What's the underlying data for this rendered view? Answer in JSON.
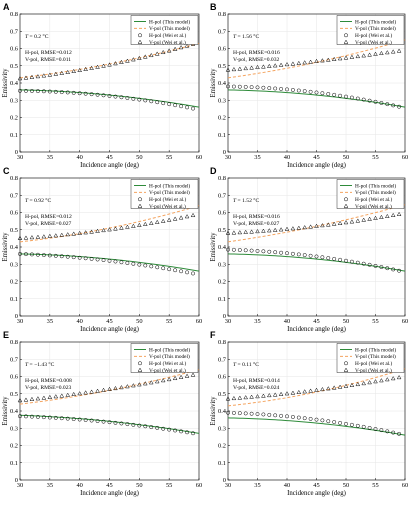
{
  "colors": {
    "h_line": "#2e8b3a",
    "v_line": "#f4a460",
    "marker": "#000000",
    "grid": "#e6e6e6"
  },
  "common": {
    "xlabel": "Incidence angle (deg)",
    "ylabel": "Emissivity",
    "xticks": [
      30,
      35,
      40,
      45,
      50,
      55,
      60
    ],
    "yticks": [
      "0",
      "0.1",
      "0.2",
      "0.3",
      "0.4",
      "0.5",
      "0.6",
      "0.7",
      "0.8"
    ],
    "legend": [
      {
        "label": "H-pol (This model)",
        "kind": "h_line"
      },
      {
        "label": "V-pol (This model)",
        "kind": "v_line"
      },
      {
        "label": "H-pol (Wei et al.)",
        "kind": "circle"
      },
      {
        "label": "V-pol (Wei et al.)",
        "kind": "triangle"
      }
    ]
  },
  "chart_data": [
    {
      "panel": "A",
      "type": "line",
      "temperature": "0.2 °C",
      "rmse_h": "H-pol, RMSE=0.012",
      "rmse_v": "V-pol, RMSE=0.011",
      "xlim": [
        30,
        60
      ],
      "ylim": [
        0,
        0.8
      ],
      "grid": true,
      "legend_position": "top-right",
      "x": [
        30,
        45,
        60
      ],
      "series": [
        {
          "name": "H-pol (This model)",
          "values": [
            0.36,
            0.33,
            0.26
          ]
        },
        {
          "name": "V-pol (This model)",
          "values": [
            0.43,
            0.51,
            0.63
          ]
        },
        {
          "name": "H-pol (Wei et al.)",
          "values": [
            0.355,
            0.325,
            0.245
          ]
        },
        {
          "name": "V-pol (Wei et al.)",
          "values": [
            0.425,
            0.505,
            0.635
          ]
        }
      ]
    },
    {
      "panel": "B",
      "type": "line",
      "temperature": "1.56 °C",
      "rmse_h": "H-pol, RMSE=0.016",
      "rmse_v": "V-pol, RMSE=0.032",
      "xlim": [
        30,
        60
      ],
      "ylim": [
        0,
        0.8
      ],
      "grid": true,
      "legend_position": "top-right",
      "x": [
        30,
        45,
        60
      ],
      "series": [
        {
          "name": "H-pol (This model)",
          "values": [
            0.36,
            0.33,
            0.26
          ]
        },
        {
          "name": "V-pol (This model)",
          "values": [
            0.43,
            0.52,
            0.65
          ]
        },
        {
          "name": "H-pol (Wei et al.)",
          "values": [
            0.38,
            0.345,
            0.255
          ]
        },
        {
          "name": "V-pol (Wei et al.)",
          "values": [
            0.475,
            0.525,
            0.59
          ]
        }
      ]
    },
    {
      "panel": "C",
      "type": "line",
      "temperature": "0.92 °C",
      "rmse_h": "H-pol, RMSE=0.012",
      "rmse_v": "V-pol, RMSE=0.027",
      "xlim": [
        30,
        60
      ],
      "ylim": [
        0,
        0.8
      ],
      "grid": true,
      "legend_position": "top-right",
      "x": [
        30,
        45,
        60
      ],
      "series": [
        {
          "name": "H-pol (This model)",
          "values": [
            0.36,
            0.33,
            0.26
          ]
        },
        {
          "name": "V-pol (This model)",
          "values": [
            0.43,
            0.51,
            0.64
          ]
        },
        {
          "name": "H-pol (Wei et al.)",
          "values": [
            0.36,
            0.32,
            0.24
          ]
        },
        {
          "name": "V-pol (Wei et al.)",
          "values": [
            0.45,
            0.5,
            0.59
          ]
        }
      ]
    },
    {
      "panel": "D",
      "type": "line",
      "temperature": "1.52 °C",
      "rmse_h": "H-pol, RMSE=0.016",
      "rmse_v": "V-pol, RMSE=0.027",
      "xlim": [
        30,
        60
      ],
      "ylim": [
        0,
        0.8
      ],
      "grid": true,
      "legend_position": "top-right",
      "x": [
        30,
        45,
        60
      ],
      "series": [
        {
          "name": "H-pol (This model)",
          "values": [
            0.36,
            0.33,
            0.26
          ]
        },
        {
          "name": "V-pol (This model)",
          "values": [
            0.43,
            0.52,
            0.645
          ]
        },
        {
          "name": "H-pol (Wei et al.)",
          "values": [
            0.385,
            0.345,
            0.255
          ]
        },
        {
          "name": "V-pol (Wei et al.)",
          "values": [
            0.48,
            0.52,
            0.595
          ]
        }
      ]
    },
    {
      "panel": "E",
      "type": "line",
      "temperature": "−1.43 °C",
      "rmse_h": "H-pol, RMSE=0.008",
      "rmse_v": "V-pol, RMSE=0.023",
      "xlim": [
        30,
        60
      ],
      "ylim": [
        0,
        0.8
      ],
      "grid": true,
      "legend_position": "top-right",
      "x": [
        30,
        45,
        60
      ],
      "series": [
        {
          "name": "H-pol (This model)",
          "values": [
            0.375,
            0.34,
            0.27
          ]
        },
        {
          "name": "V-pol (This model)",
          "values": [
            0.44,
            0.52,
            0.64
          ]
        },
        {
          "name": "H-pol (Wei et al.)",
          "values": [
            0.37,
            0.335,
            0.265
          ]
        },
        {
          "name": "V-pol (Wei et al.)",
          "values": [
            0.46,
            0.525,
            0.615
          ]
        }
      ]
    },
    {
      "panel": "F",
      "type": "line",
      "temperature": "0.11 °C",
      "rmse_h": "H-pol, RMSE=0.014",
      "rmse_v": "V-pol, RMSE=0.024",
      "xlim": [
        30,
        60
      ],
      "ylim": [
        0,
        0.8
      ],
      "grid": true,
      "legend_position": "top-right",
      "x": [
        30,
        45,
        60
      ],
      "series": [
        {
          "name": "H-pol (This model)",
          "values": [
            0.36,
            0.33,
            0.26
          ]
        },
        {
          "name": "V-pol (This model)",
          "values": [
            0.43,
            0.51,
            0.645
          ]
        },
        {
          "name": "H-pol (Wei et al.)",
          "values": [
            0.39,
            0.35,
            0.26
          ]
        },
        {
          "name": "V-pol (Wei et al.)",
          "values": [
            0.47,
            0.52,
            0.6
          ]
        }
      ]
    }
  ]
}
